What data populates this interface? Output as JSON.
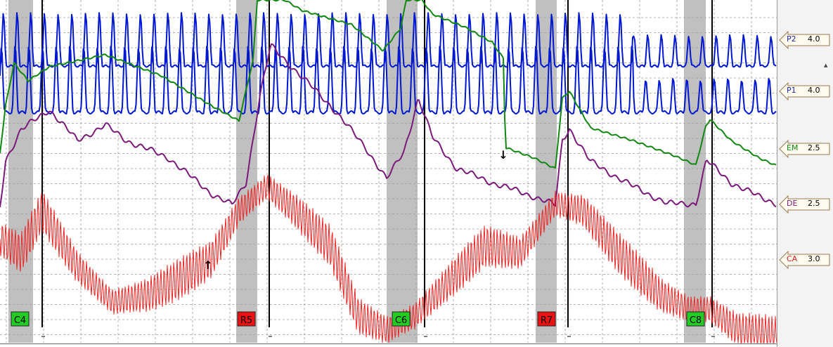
{
  "chart_data": {
    "type": "line",
    "series": [
      {
        "name": "P2",
        "color": "#0018d0"
      },
      {
        "name": "P1",
        "color": "#0018d0"
      },
      {
        "name": "EM",
        "color": "#118811"
      },
      {
        "name": "DE",
        "color": "#7a1a7a"
      },
      {
        "name": "CA",
        "color": "#ee2222"
      }
    ],
    "question_markers": [
      {
        "label": "C4",
        "kind": "comparison",
        "color": "#22cc22"
      },
      {
        "label": "R5",
        "kind": "relevant",
        "color": "#ee1111"
      },
      {
        "label": "C6",
        "kind": "comparison",
        "color": "#22cc22"
      },
      {
        "label": "R7",
        "kind": "relevant",
        "color": "#ee1111"
      },
      {
        "label": "C8",
        "kind": "comparison",
        "color": "#22cc22"
      }
    ],
    "artifact_markers": [
      "↑",
      "↓"
    ],
    "grid": true
  },
  "channel_labels": [
    {
      "name": "P2",
      "sensitivity": "4.0",
      "color": "#1a2aa0"
    },
    {
      "name": "P1",
      "sensitivity": "4.0",
      "color": "#1a2aa0"
    },
    {
      "name": "EM",
      "sensitivity": "2.5",
      "color": "#118811"
    },
    {
      "name": "DE",
      "sensitivity": "2.5",
      "color": "#7a1a7a"
    },
    {
      "name": "CA",
      "sensitivity": "3.0",
      "color": "#cc2222"
    }
  ],
  "colors": {
    "shade": "#c0c0c0",
    "grid": "#9c9c9c",
    "onset_line": "#000000",
    "label_box_fill": "#fffbee",
    "label_box_border": "#9a7a50"
  },
  "icons": {
    "scroll_up": "▲",
    "scroll_down": "▼"
  }
}
